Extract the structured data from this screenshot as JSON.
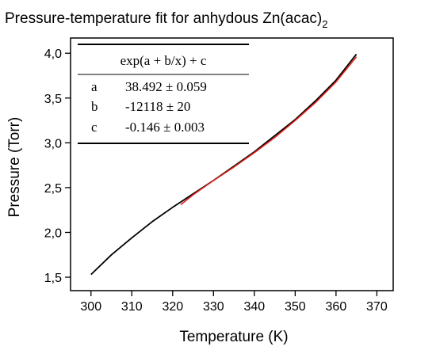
{
  "chart_data": {
    "type": "line",
    "title": "Pressure-temperature fit for anhydous Zn(acac)",
    "title_subscript": "2",
    "xlabel": "Temperature (K)",
    "ylabel": "Pressure (Torr)",
    "xlim": [
      295,
      374
    ],
    "ylim": [
      1.35,
      4.17
    ],
    "x_ticks": [
      300,
      310,
      320,
      330,
      340,
      350,
      360,
      370
    ],
    "y_ticks": [
      1.5,
      2.0,
      2.5,
      3.0,
      3.5,
      4.0
    ],
    "x_tick_labels": [
      "300",
      "310",
      "320",
      "330",
      "340",
      "350",
      "360",
      "370"
    ],
    "y_tick_labels": [
      "1,5",
      "2,0",
      "2,5",
      "3,0",
      "3,5",
      "4,0"
    ],
    "grid": false,
    "series": [
      {
        "name": "data",
        "color": "#000000",
        "x": [
          300,
          305,
          310,
          315,
          320,
          325,
          330,
          335,
          340,
          345,
          350,
          355,
          360,
          365
        ],
        "y": [
          1.53,
          1.75,
          1.94,
          2.12,
          2.28,
          2.43,
          2.58,
          2.74,
          2.9,
          3.08,
          3.26,
          3.47,
          3.7,
          3.99
        ]
      },
      {
        "name": "fit",
        "color": "#e0201a",
        "x": [
          322,
          325,
          330,
          335,
          340,
          345,
          350,
          355,
          360,
          365
        ],
        "y": [
          2.31,
          2.42,
          2.58,
          2.73,
          2.89,
          3.06,
          3.25,
          3.45,
          3.68,
          3.96
        ]
      }
    ],
    "fit_table": {
      "equation": "exp(a + b/x) + c",
      "rows": [
        {
          "param": "a",
          "value": "38.492 ± 0.059"
        },
        {
          "param": "b",
          "value": "-12118 ± 20"
        },
        {
          "param": "c",
          "value": "-0.146 ± 0.003"
        }
      ]
    }
  }
}
